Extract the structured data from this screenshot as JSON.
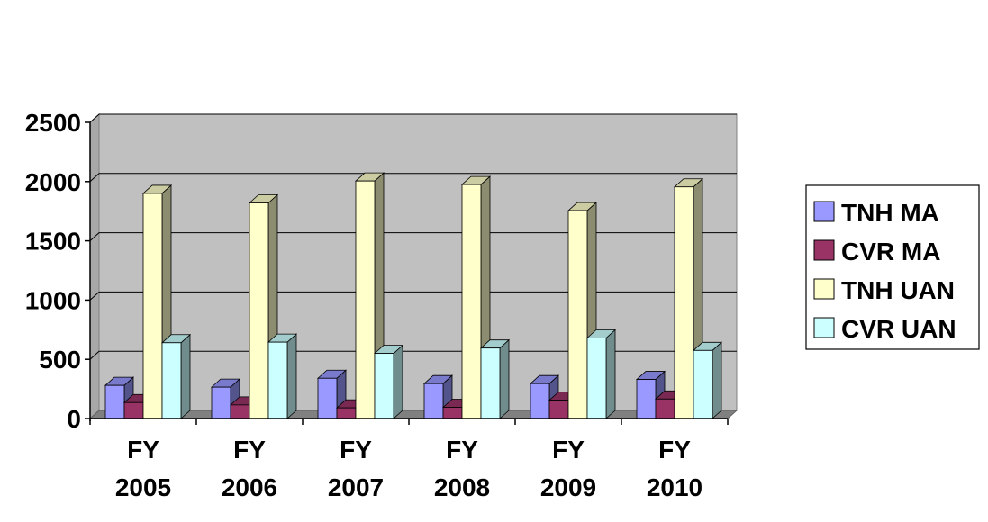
{
  "chart_data": {
    "type": "bar",
    "title": "",
    "xlabel": "",
    "ylabel": "",
    "ylim": [
      0,
      2500
    ],
    "yticks": [
      0,
      500,
      1000,
      1500,
      2000,
      2500
    ],
    "grid": true,
    "legend_position": "right",
    "categories": [
      [
        "FY",
        "2005"
      ],
      [
        "FY",
        "2006"
      ],
      [
        "FY",
        "2007"
      ],
      [
        "FY",
        "2008"
      ],
      [
        "FY",
        "2009"
      ],
      [
        "FY",
        "2010"
      ]
    ],
    "series": [
      {
        "name": "TNH MA",
        "color": "#9999FF",
        "values": [
          280,
          265,
          340,
          295,
          295,
          330
        ]
      },
      {
        "name": "CVR MA",
        "color": "#993366",
        "values": [
          135,
          115,
          90,
          95,
          155,
          165
        ]
      },
      {
        "name": "TNH UAN",
        "color": "#FFFFCC",
        "values": [
          1900,
          1820,
          2005,
          1975,
          1755,
          1955
        ]
      },
      {
        "name": "CVR UAN",
        "color": "#CCFFFF",
        "values": [
          640,
          645,
          550,
          595,
          680,
          575
        ]
      }
    ]
  }
}
